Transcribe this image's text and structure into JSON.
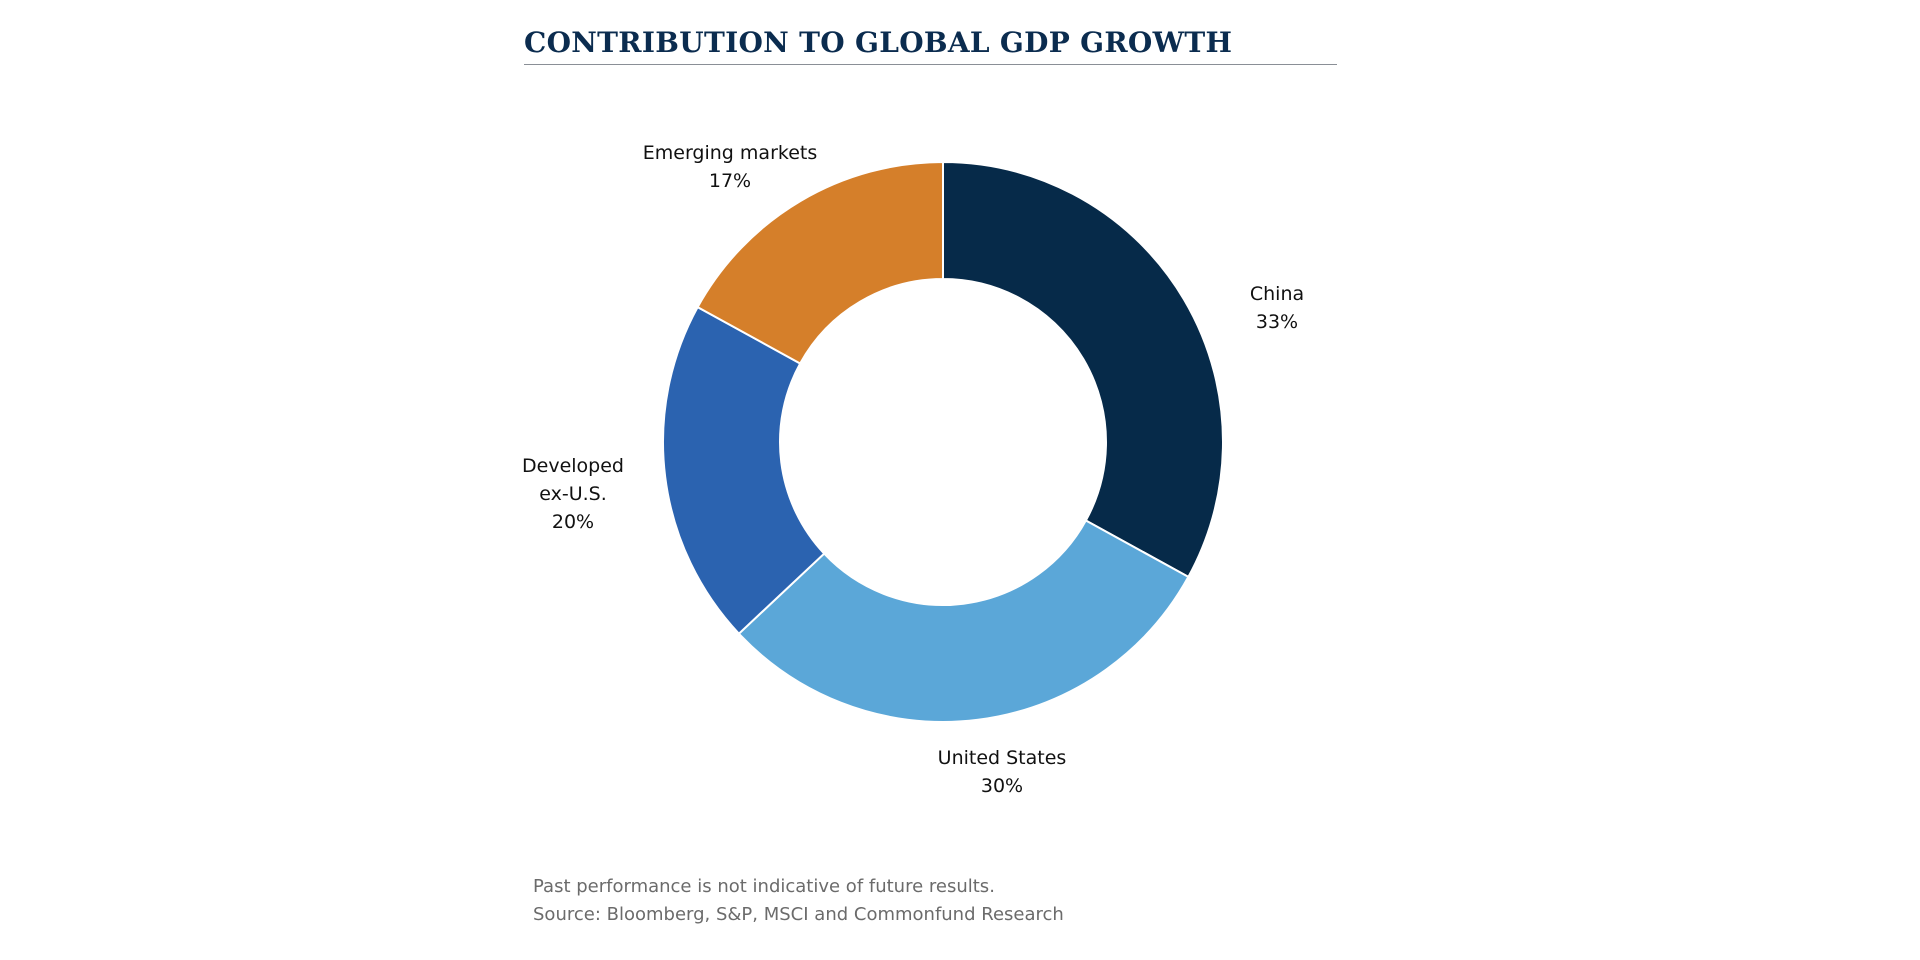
{
  "chart_data": {
    "type": "pie",
    "title": "CONTRIBUTION TO GLOBAL GDP GROWTH",
    "categories": [
      "China",
      "United States",
      "Developed ex-U.S.",
      "Emerging markets"
    ],
    "values": [
      33,
      30,
      20,
      17
    ],
    "value_labels": [
      "33%",
      "30%",
      "20%",
      "17%"
    ],
    "colors": [
      "#062a49",
      "#5ba7d8",
      "#2b63b0",
      "#d57f2a"
    ],
    "notes": [
      "Past performance is not indicative of future results.",
      "Source: Bloomberg, S&P, MSCI and Commonfund Research"
    ]
  }
}
